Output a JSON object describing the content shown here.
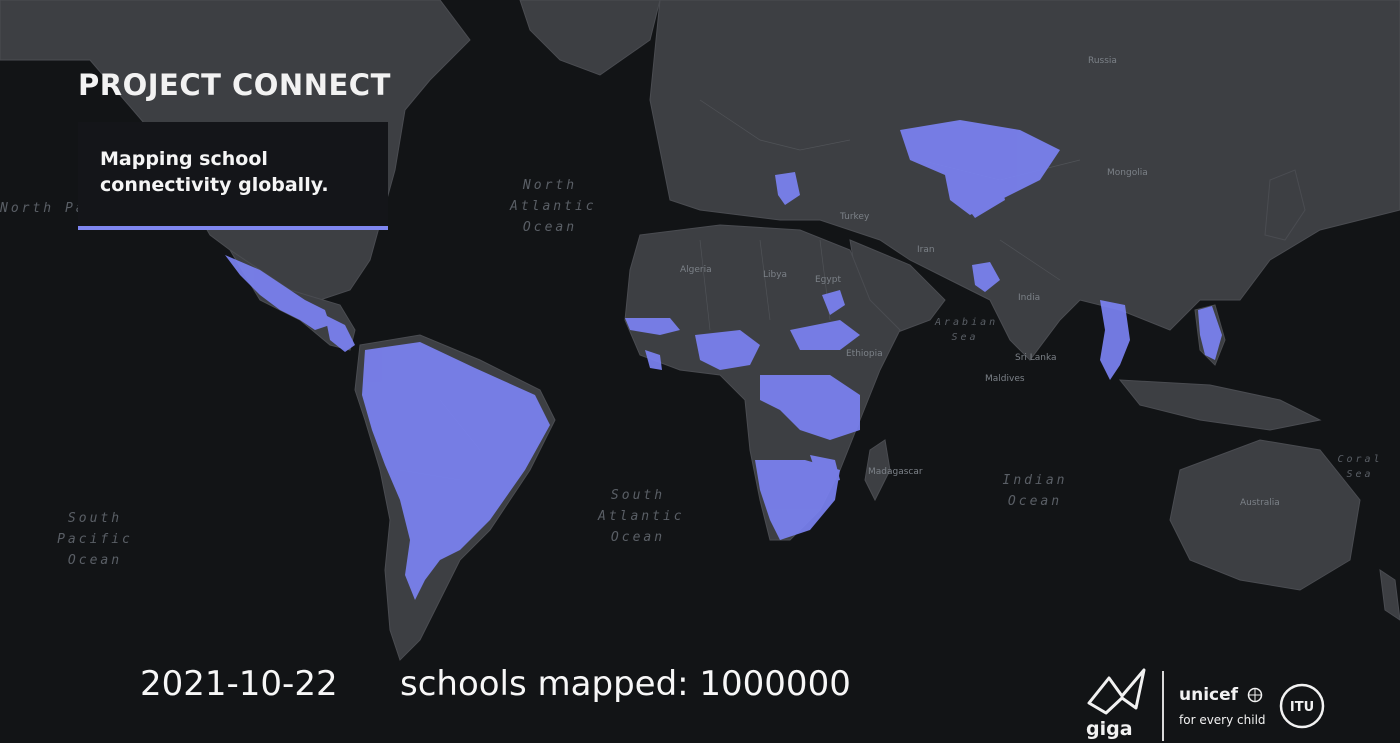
{
  "header": {
    "title": "PROJECT CONNECT",
    "subtitle": "Mapping school connectivity globally."
  },
  "footer": {
    "date": "2021-10-22",
    "stat": "schools mapped: 1000000"
  },
  "ocean_labels": {
    "north_pacific": "North Pacific Ocean",
    "north_atlantic": "North Atlantic Ocean",
    "south_pacific": "South Pacific Ocean",
    "south_atlantic": "South Atlantic Ocean",
    "indian": "Indian Ocean",
    "arabian_sea": "Arabian Sea",
    "coral_sea": "Coral Sea"
  },
  "place_labels": {
    "madagascar": "Madagascar",
    "maldives": "Maldives",
    "sri_lanka": "Sri Lanka",
    "australia": "Australia",
    "russia": "Russia",
    "mongolia": "Mongolia",
    "india": "India",
    "ethiopia": "Ethiopia",
    "algeria": "Algeria",
    "libya": "Libya",
    "egypt": "Egypt",
    "turkey": "Turkey",
    "iran": "Iran"
  },
  "logos": {
    "giga": "giga",
    "unicef": "unicef",
    "unicef_tagline": "for every child"
  },
  "colors": {
    "ocean": "#121416",
    "land": "#3d3f43",
    "highlight": "#7b82f2",
    "accent_bar": "#7f86f0"
  },
  "icons": [
    "giga-logo-icon",
    "unicef-globe-icon",
    "itu-logo-icon"
  ]
}
